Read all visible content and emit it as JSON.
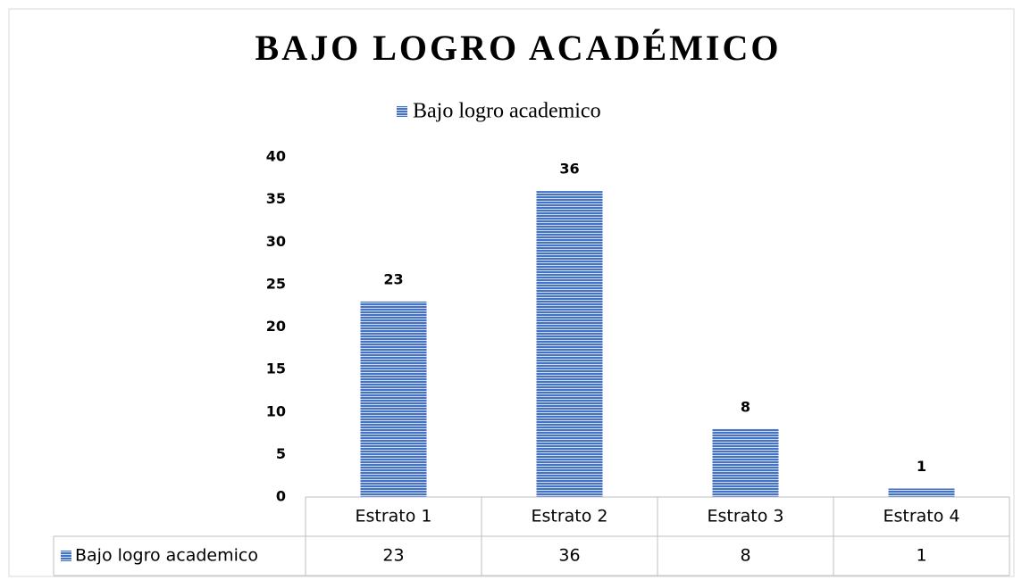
{
  "chart_data": {
    "type": "bar",
    "title": "BAJO LOGRO ACADÉMICO",
    "categories": [
      "Estrato 1",
      "Estrato 2",
      "Estrato 3",
      "Estrato 4"
    ],
    "series": [
      {
        "name": "Bajo logro academico",
        "color": "#4472c4",
        "values": [
          23,
          36,
          8,
          1
        ]
      }
    ],
    "ylim": [
      0,
      40
    ],
    "yticks": [
      0,
      5,
      10,
      15,
      20,
      25,
      30,
      35,
      40
    ],
    "grid": false,
    "legend": "top",
    "data_table": true
  }
}
